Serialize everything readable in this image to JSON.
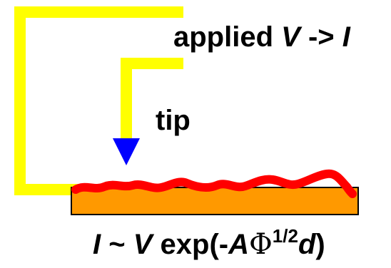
{
  "diagram": {
    "applied": {
      "prefix": "applied ",
      "v": "V",
      "arrow": " -> ",
      "i": "I"
    },
    "tip_label": "tip",
    "formula": {
      "i": "I",
      "tilde": " ~ ",
      "v": "V",
      "exp": " exp(-",
      "a": "A",
      "phi": "Φ",
      "sup": "1/2",
      "d": "d",
      "close": ")"
    },
    "colors": {
      "wire": "#ffff00",
      "tip": "#0000ff",
      "sample": "#ff9900",
      "surface": "#ff0000",
      "text": "#000000"
    }
  }
}
